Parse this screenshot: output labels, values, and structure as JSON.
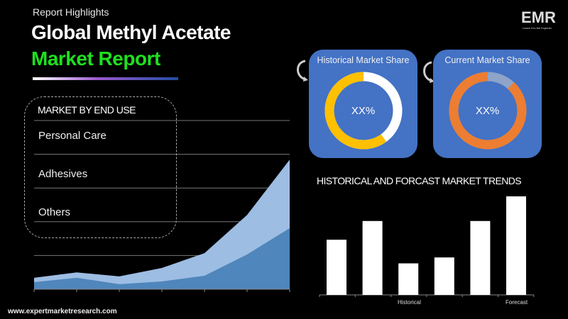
{
  "header": {
    "kicker": "Report Highlights",
    "title_line1": "Global Methyl Acetate",
    "title_line2": "Market Report"
  },
  "logo": {
    "text": "EMR",
    "tagline": "Leave it to the Experts!"
  },
  "segments": {
    "title": "MARKET BY END USE",
    "items": [
      "Personal Care",
      "Adhesives",
      "Others"
    ]
  },
  "cards": [
    {
      "title": "Historical Market Share",
      "value": "XX%",
      "ring_colors": [
        "#ffc000",
        "#ffffff"
      ],
      "share": 0.6
    },
    {
      "title": "Current Market Share",
      "value": "XX%",
      "ring_colors": [
        "#ed7d31",
        "#8ea4c8"
      ],
      "share": 0.88
    }
  ],
  "trend": {
    "title": "HISTORICAL AND FORCAST MARKET TRENDS"
  },
  "footer": {
    "url": "www.expertmarketresearch.com"
  },
  "colors": {
    "accent_green": "#1fe01f",
    "card_blue": "#4472c4",
    "area_light": "#9dbde3",
    "area_dark": "#4f86bb"
  },
  "chart_data": [
    {
      "type": "area",
      "title": "",
      "ylim": [
        0,
        5
      ],
      "grid": true,
      "series": [
        {
          "values": [
            0.34,
            0.5,
            0.38,
            0.63,
            1.07,
            2.2,
            3.84
          ],
          "color": "#9dbde3"
        },
        {
          "values": [
            0.21,
            0.34,
            0.15,
            0.23,
            0.4,
            1.03,
            1.81
          ],
          "color": "#4f86bb"
        }
      ]
    },
    {
      "type": "bar",
      "title": "HISTORICAL AND FORCAST MARKET TRENDS",
      "xtick_labels": [
        "Historical",
        "Forecast"
      ],
      "values": [
        56,
        75,
        32,
        38,
        75,
        100
      ],
      "ylim": [
        0,
        100
      ],
      "grid": false,
      "color": "#ffffff"
    }
  ]
}
